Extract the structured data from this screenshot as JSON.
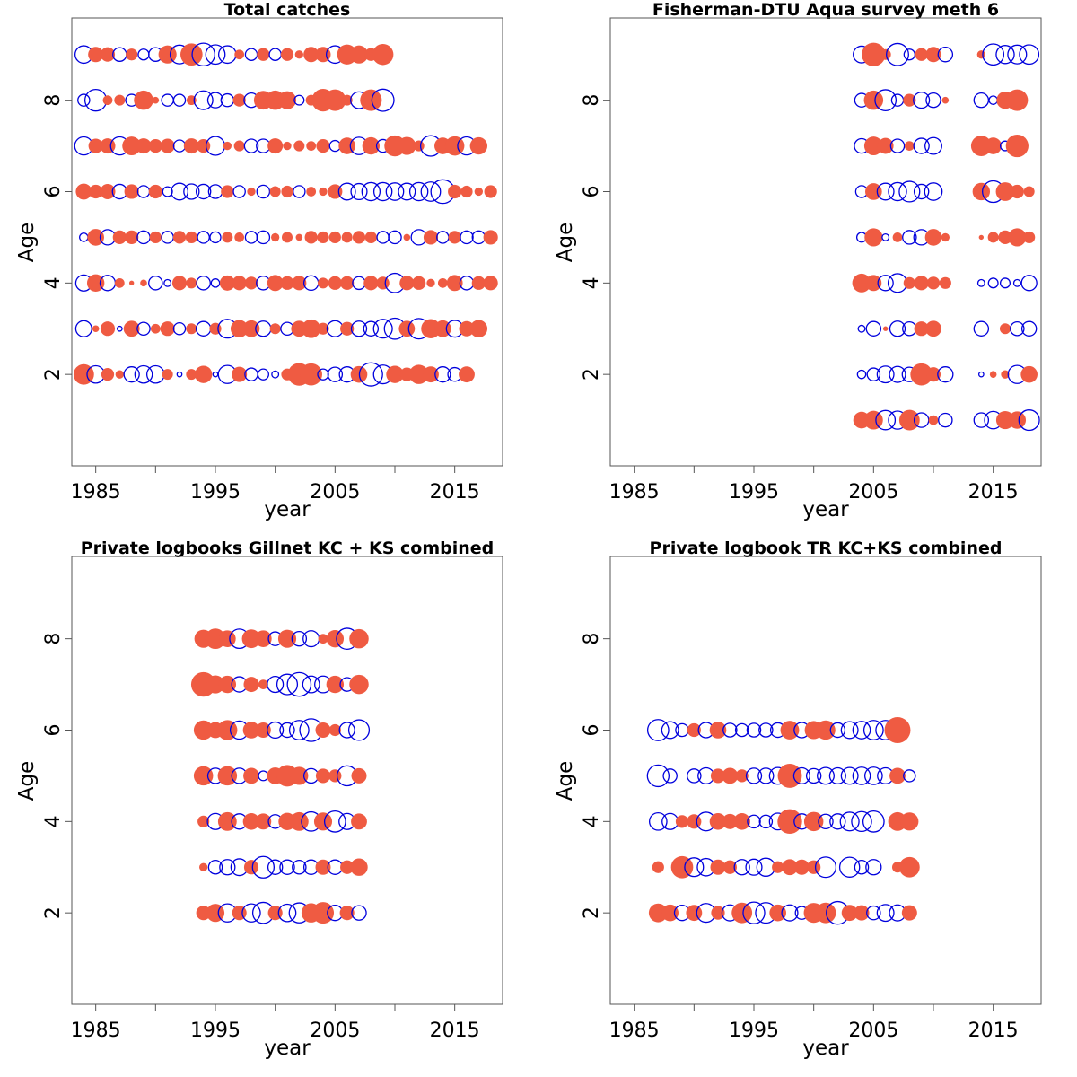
{
  "colors": {
    "positive": "#ef5b42",
    "negative": "#0000dd",
    "frame": "#555555"
  },
  "chart_data": [
    {
      "type": "scatter",
      "title": "Total catches",
      "xlabel": "year",
      "ylabel": "Age",
      "xlim": [
        1983,
        2019
      ],
      "ylim": [
        0,
        9.8
      ],
      "xticks": [
        1985,
        1990,
        1995,
        2000,
        2005,
        2010,
        2015
      ],
      "xticklabels": [
        "1985",
        "",
        "1995",
        "",
        "2005",
        "",
        "2015"
      ],
      "yticks": [
        2,
        4,
        6,
        8
      ],
      "ages": [
        2,
        3,
        4,
        5,
        6,
        7,
        8,
        9
      ],
      "years": [
        1984,
        1985,
        1986,
        1987,
        1988,
        1989,
        1990,
        1991,
        1992,
        1993,
        1994,
        1995,
        1996,
        1997,
        1998,
        1999,
        2000,
        2001,
        2002,
        2003,
        2004,
        2005,
        2006,
        2007,
        2008,
        2009,
        2010,
        2011,
        2012,
        2013,
        2014,
        2015,
        2016,
        2017,
        2018
      ],
      "residuals": [
        [
          1.8,
          -1.3,
          0.7,
          0.3,
          -1.0,
          -1.3,
          -1.3,
          0.5,
          -0.1,
          0.5,
          1.3,
          -0.1,
          -1.4,
          1.0,
          -0.7,
          -0.5,
          -0.2,
          0.6,
          2.2,
          2.1,
          -0.5,
          -0.9,
          -1.0,
          1.2,
          -2.3,
          -1.5,
          1.3,
          0.8,
          1.6,
          1.1,
          -1.0,
          -0.8,
          1.1
        ],
        [
          -1.1,
          0.2,
          0.9,
          -0.1,
          1.1,
          -0.7,
          0.4,
          0.9,
          -0.6,
          0.5,
          -0.9,
          0.6,
          -1.5,
          1.3,
          1.2,
          -1.0,
          0.5,
          -0.7,
          1.1,
          1.5,
          0.6,
          -1.1,
          0.8,
          -1.0,
          -0.9,
          -1.5,
          -1.9,
          1.1,
          -1.8,
          1.6,
          1.2,
          -1.2,
          1.0,
          1.3
        ],
        [
          -1.1,
          1.3,
          -1.0,
          0.4,
          0.1,
          0.2,
          -0.8,
          -0.2,
          0.9,
          0.5,
          -0.8,
          -0.3,
          1.0,
          0.9,
          0.7,
          -0.8,
          1.1,
          0.8,
          0.9,
          -0.9,
          0.5,
          0.8,
          0.8,
          -0.7,
          0.9,
          0.7,
          -1.6,
          0.9,
          0.8,
          0.3,
          0.4,
          1.1,
          -0.8,
          0.8,
          0.9
        ],
        [
          -0.3,
          1.2,
          -1.0,
          0.8,
          0.8,
          -0.7,
          0.6,
          -0.6,
          0.7,
          0.6,
          -0.6,
          -0.5,
          0.5,
          0.4,
          -0.6,
          -0.7,
          0.3,
          0.5,
          0.2,
          0.7,
          0.6,
          0.6,
          0.5,
          0.7,
          0.6,
          -0.6,
          -0.7,
          0.2,
          -1.0,
          0.9,
          -0.6,
          0.7,
          -0.7,
          -0.7,
          0.9
        ],
        [
          1.1,
          0.8,
          1.0,
          -0.9,
          0.9,
          -0.6,
          0.8,
          -0.4,
          -1.2,
          -1.0,
          -0.9,
          -0.8,
          0.7,
          -0.6,
          0.3,
          -0.7,
          0.5,
          0.6,
          -0.6,
          0.4,
          0.3,
          0.9,
          -1.2,
          -1.1,
          -1.4,
          -1.4,
          -1.3,
          -1.2,
          -1.4,
          -1.6,
          -2.4,
          0.8,
          0.6,
          0.3,
          0.7
        ],
        [
          -1.4,
          0.9,
          1.0,
          -1.4,
          1.5,
          1.0,
          0.8,
          0.9,
          -0.6,
          1.0,
          0.8,
          -1.5,
          0.3,
          0.5,
          -0.8,
          -0.8,
          1.0,
          0.3,
          0.5,
          0.4,
          0.8,
          -0.5,
          1.2,
          -1.3,
          1.3,
          -0.7,
          1.9,
          1.4,
          0.5,
          -1.8,
          1.2,
          1.6,
          -1.4,
          1.3
        ],
        [
          -0.6,
          -2.0,
          0.4,
          0.5,
          -0.6,
          1.6,
          0.2,
          -0.6,
          -0.6,
          0.4,
          -1.5,
          -1.0,
          -0.7,
          0.7,
          -0.9,
          1.5,
          1.6,
          1.4,
          -0.4,
          0.5,
          2.2,
          2.0,
          0.5,
          -1.2,
          2.0,
          -2.1
        ],
        [
          -1.3,
          1.0,
          0.9,
          -0.8,
          0.6,
          -0.5,
          -0.8,
          1.4,
          -1.5,
          2.1,
          -2.2,
          -1.6,
          -1.3,
          0.4,
          -0.6,
          0.7,
          -0.6,
          0.7,
          0.3,
          1.0,
          1.0,
          -1.3,
          1.7,
          1.4,
          0.7,
          1.9
        ]
      ]
    },
    {
      "type": "scatter",
      "title": "Fisherman-DTU Aqua survey meth 6",
      "xlabel": "year",
      "ylabel": "Age",
      "xlim": [
        1983,
        2019
      ],
      "ylim": [
        0,
        9.8
      ],
      "xticks": [
        1985,
        1990,
        1995,
        2000,
        2005,
        2010,
        2015
      ],
      "xticklabels": [
        "1985",
        "",
        "1995",
        "",
        "2005",
        "",
        "2015"
      ],
      "yticks": [
        2,
        4,
        6,
        8
      ],
      "ages": [
        1,
        2,
        3,
        4,
        5,
        6,
        7,
        8,
        9
      ],
      "years": [
        2004,
        2005,
        2006,
        2007,
        2008,
        2009,
        2010,
        2011,
        2014,
        2015,
        2016,
        2017,
        2018
      ],
      "residuals": [
        [
          1.2,
          1.5,
          -1.6,
          -1.4,
          1.8,
          -0.9,
          0.4,
          -0.8,
          -0.9,
          -1.3,
          1.4,
          1.3,
          -1.8
        ],
        [
          -0.3,
          -0.7,
          -1.2,
          -1.1,
          -0.9,
          2.1,
          0.9,
          -1.0,
          -0.1,
          0.2,
          0.3,
          -1.4,
          1.2
        ],
        [
          -0.2,
          -0.9,
          0.1,
          -1.0,
          -0.8,
          0.9,
          1.1,
          null,
          -0.9,
          null,
          0.5,
          -0.8,
          -0.9
        ],
        [
          1.5,
          1.1,
          -1.0,
          -1.5,
          0.6,
          0.9,
          0.7,
          0.6,
          -0.2,
          -0.4,
          -0.4,
          -0.2,
          -1.0
        ],
        [
          -0.4,
          1.4,
          -0.2,
          0.4,
          -0.8,
          -1.0,
          1.2,
          0.3,
          0.1,
          0.5,
          0.8,
          1.4,
          0.6
        ],
        [
          -0.6,
          1.2,
          -1.2,
          -1.4,
          -1.8,
          -0.9,
          -1.3,
          null,
          1.3,
          -2.0,
          1.5,
          0.8,
          0.5
        ],
        [
          -0.9,
          1.5,
          1.1,
          -0.8,
          0.4,
          -1.0,
          -1.2,
          null,
          1.8,
          1.2,
          -0.4,
          2.2
        ],
        [
          -0.8,
          1.6,
          -1.9,
          -0.6,
          0.7,
          -1.1,
          -0.9,
          0.2,
          -0.9,
          -0.3,
          1.3,
          2.0
        ],
        [
          -1.2,
          2.4,
          0.5,
          -2.1,
          -0.5,
          0.7,
          1.0,
          -0.9,
          0.3,
          -1.9,
          -1.4,
          -1.5,
          -1.6
        ]
      ]
    },
    {
      "type": "scatter",
      "title": "Private logbooks Gillnet KC + KS combined",
      "xlabel": "year",
      "ylabel": "Age",
      "xlim": [
        1983,
        2019
      ],
      "ylim": [
        0,
        9.8
      ],
      "xticks": [
        1985,
        1990,
        1995,
        2000,
        2005,
        2010,
        2015
      ],
      "xticklabels": [
        "1985",
        "",
        "1995",
        "",
        "2005",
        "",
        "2015"
      ],
      "yticks": [
        2,
        4,
        6,
        8
      ],
      "ages": [
        2,
        3,
        4,
        5,
        6,
        7,
        8
      ],
      "years": [
        1994,
        1995,
        1996,
        1997,
        1998,
        1999,
        2000,
        2001,
        2002,
        2003,
        2004,
        2005,
        2006,
        2007
      ],
      "residuals": [
        [
          0.9,
          1.4,
          -1.4,
          0.9,
          -1.4,
          -1.9,
          0.9,
          -1.3,
          -1.7,
          1.6,
          2.0,
          -1.0,
          0.9,
          -0.9
        ],
        [
          0.3,
          -0.8,
          -1.0,
          -1.2,
          0.9,
          -2.0,
          -0.9,
          -0.9,
          -0.8,
          -0.9,
          1.0,
          -0.9,
          0.8,
          1.3
        ],
        [
          0.6,
          -1.1,
          1.5,
          -1.0,
          1.2,
          1.1,
          -0.8,
          1.3,
          1.5,
          -1.6,
          1.4,
          -1.9,
          -1.1,
          1.1
        ],
        [
          1.6,
          -1.0,
          1.6,
          -1.0,
          1.1,
          -0.4,
          1.2,
          2.0,
          1.4,
          -0.9,
          0.9,
          0.7,
          -1.7,
          1.0
        ],
        [
          1.6,
          1.1,
          1.7,
          -1.4,
          1.2,
          1.0,
          -1.1,
          -0.9,
          -1.6,
          -2.2,
          1.0,
          0.6,
          -1.0,
          -1.8
        ],
        [
          2.6,
          1.4,
          1.3,
          -1.0,
          1.0,
          0.4,
          -1.1,
          -1.8,
          -2.4,
          -1.2,
          -1.2,
          1.3,
          -0.8,
          1.6
        ],
        [
          1.4,
          1.8,
          1.2,
          -1.6,
          1.5,
          1.2,
          -0.8,
          1.4,
          -0.9,
          -1.1,
          0.4,
          1.3,
          -1.9,
          1.6
        ]
      ]
    },
    {
      "type": "scatter",
      "title": "Private logbook TR KC+KS combined",
      "xlabel": "year",
      "ylabel": "Age",
      "xlim": [
        1983,
        2019
      ],
      "ylim": [
        0,
        9.8
      ],
      "xticks": [
        1985,
        1990,
        1995,
        2000,
        2005,
        2010,
        2015
      ],
      "xticklabels": [
        "1985",
        "",
        "1995",
        "",
        "2005",
        "",
        "2015"
      ],
      "yticks": [
        2,
        4,
        6,
        8
      ],
      "ages": [
        2,
        3,
        4,
        5,
        6
      ],
      "years": [
        1987,
        1988,
        1989,
        1990,
        1991,
        1992,
        1993,
        1994,
        1995,
        1996,
        1997,
        1998,
        1999,
        2000,
        2001,
        2002,
        2003,
        2004,
        2005,
        2006,
        2007,
        2008
      ],
      "residuals": [
        [
          1.5,
          1.2,
          -1.0,
          1.1,
          -1.5,
          0.8,
          -1.1,
          1.8,
          -2.0,
          -1.8,
          1.2,
          -1.1,
          -0.7,
          1.7,
          1.8,
          -2.2,
          1.1,
          1.0,
          -0.8,
          -1.2,
          -1.1,
          1.0
        ],
        [
          0.6,
          null,
          2.1,
          -1.5,
          -1.3,
          1.0,
          0.8,
          -1.0,
          -1.1,
          -1.4,
          0.6,
          1.1,
          1.0,
          0.8,
          -1.8,
          null,
          -1.7,
          -0.8,
          -1.0,
          null,
          0.5,
          1.8
        ],
        [
          -1.3,
          -1.1,
          0.7,
          0.9,
          -1.5,
          1.2,
          1.0,
          1.2,
          -0.7,
          -0.7,
          -1.2,
          2.6,
          -1.0,
          1.6,
          -0.9,
          -1.0,
          -1.5,
          -1.7,
          -1.9,
          null,
          1.5,
          1.4
        ],
        [
          -2.0,
          -0.8,
          null,
          -0.8,
          -1.1,
          0.9,
          1.1,
          0.7,
          -1.0,
          -1.0,
          -1.2,
          2.5,
          -1.1,
          -0.9,
          -1.2,
          -1.1,
          -1.2,
          -1.3,
          -1.3,
          -1.1,
          1.1,
          -0.6
        ],
        [
          -1.9,
          -1.2,
          -0.7,
          0.8,
          -1.0,
          1.2,
          -0.8,
          -0.7,
          -0.8,
          -0.8,
          -0.9,
          1.5,
          -1.0,
          1.4,
          1.6,
          -0.9,
          -1.2,
          -1.3,
          -1.6,
          -1.6,
          2.9
        ]
      ]
    }
  ]
}
